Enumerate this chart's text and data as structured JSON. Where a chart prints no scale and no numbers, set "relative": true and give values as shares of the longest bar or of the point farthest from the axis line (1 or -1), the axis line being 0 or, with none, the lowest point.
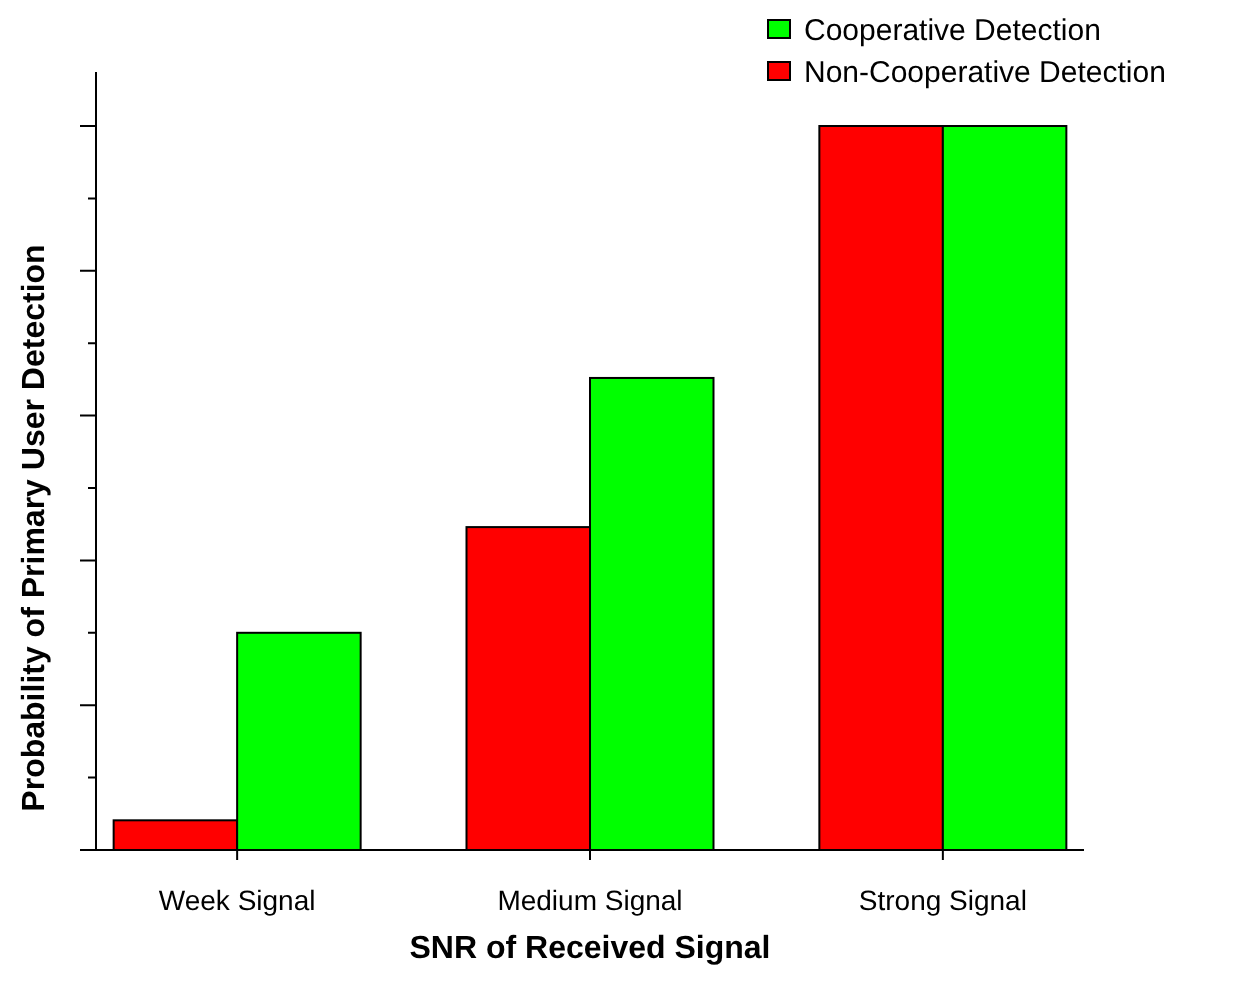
{
  "chart_data": {
    "type": "bar",
    "relative": true,
    "xlabel": "SNR of Received Signal",
    "ylabel": "Probability of Primary User Detection",
    "categories": [
      "Week Signal",
      "Medium Signal",
      "Strong Signal"
    ],
    "legend": "top right",
    "series": [
      {
        "name": "Non-Cooperative Detection",
        "color": "#ff0000",
        "values": [
          0.041,
          0.446,
          1
        ]
      },
      {
        "name": "Cooperative Detection",
        "color": "#00ff00",
        "values": [
          0.3,
          0.652,
          1
        ]
      }
    ]
  }
}
